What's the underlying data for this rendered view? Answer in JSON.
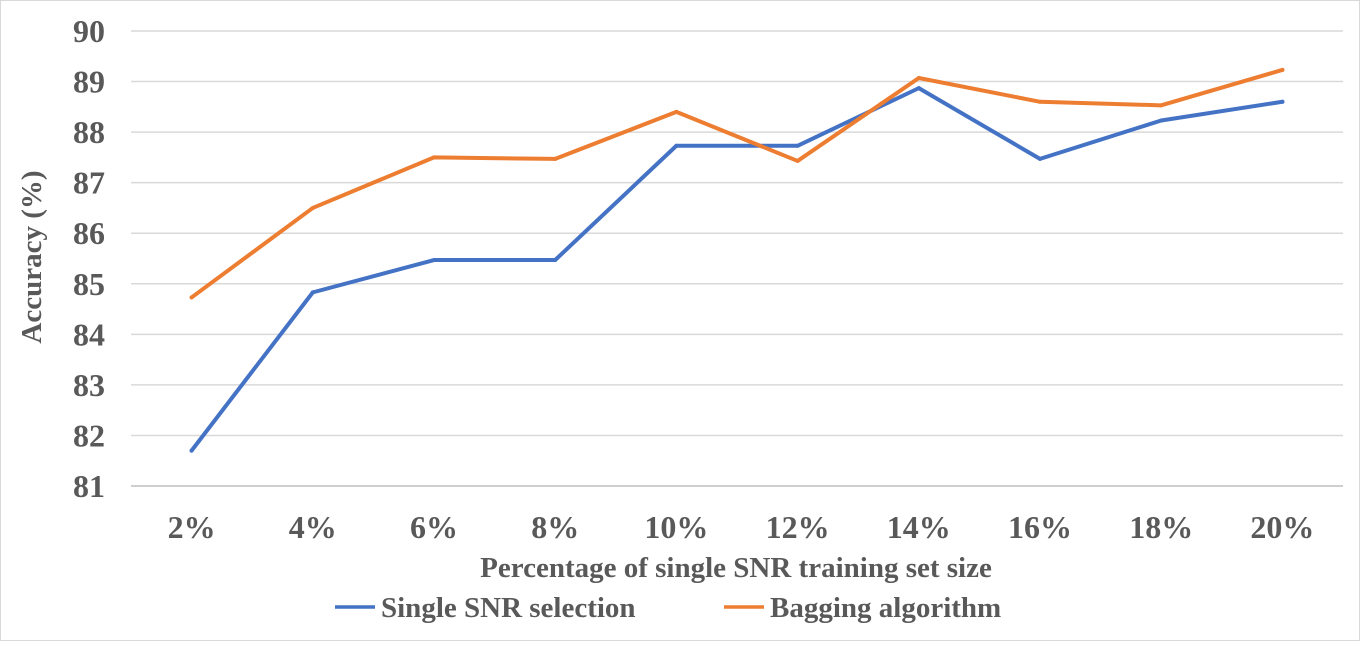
{
  "chart_data": {
    "type": "line",
    "title": "",
    "xlabel": "Percentage of single SNR training set size",
    "ylabel": "Accuracy (%)",
    "categories": [
      "2%",
      "4%",
      "6%",
      "8%",
      "10%",
      "12%",
      "14%",
      "16%",
      "18%",
      "20%"
    ],
    "ylim": [
      81,
      90
    ],
    "yticks": [
      81,
      82,
      83,
      84,
      85,
      86,
      87,
      88,
      89,
      90
    ],
    "grid": true,
    "legend_position": "bottom",
    "series": [
      {
        "name": "Single SNR selection",
        "color": "#4472c4",
        "values": [
          81.7,
          84.83,
          85.47,
          85.47,
          87.73,
          87.73,
          88.87,
          87.47,
          88.23,
          88.6
        ]
      },
      {
        "name": "Bagging algorithm",
        "color": "#ed7d31",
        "values": [
          84.73,
          86.5,
          87.5,
          87.47,
          88.4,
          87.43,
          89.07,
          88.6,
          88.53,
          89.23
        ]
      }
    ]
  }
}
